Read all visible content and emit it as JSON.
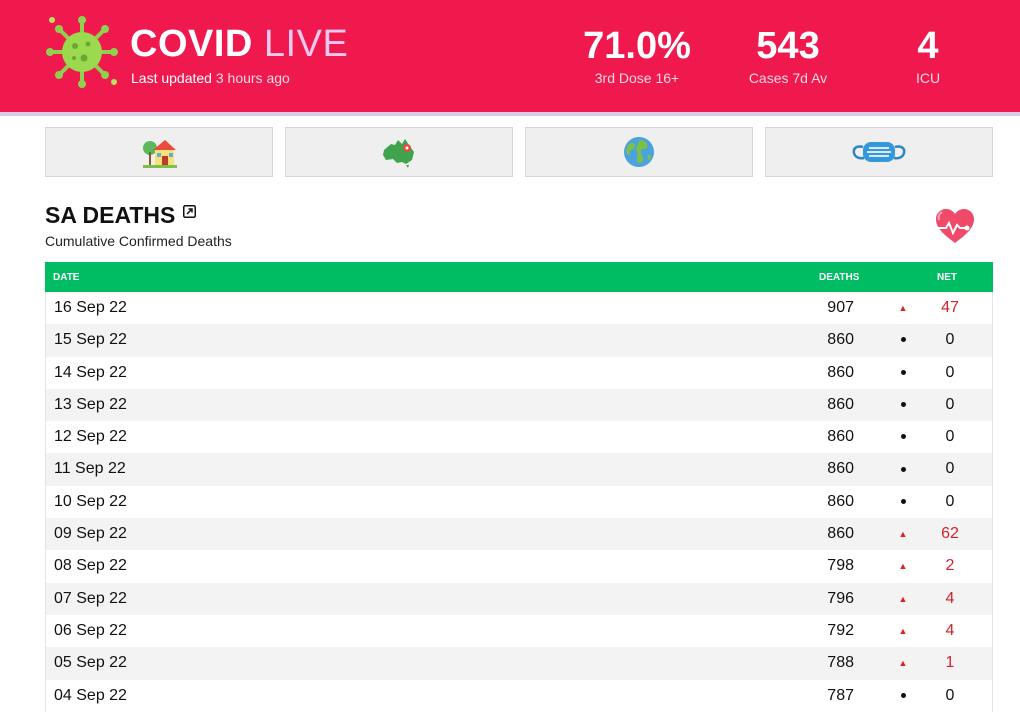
{
  "header": {
    "brand_main": "COVID",
    "brand_accent": "LIVE",
    "updated_label": "Last updated",
    "updated_ago": "3 hours ago",
    "stats": [
      {
        "value": "71.0%",
        "label": "3rd Dose 16+"
      },
      {
        "value": "543",
        "label": "Cases 7d Av"
      },
      {
        "value": "4",
        "label": "ICU"
      }
    ]
  },
  "nav": [
    {
      "icon": "house-icon"
    },
    {
      "icon": "australia-map-icon"
    },
    {
      "icon": "globe-icon"
    },
    {
      "icon": "face-mask-icon"
    }
  ],
  "page": {
    "title": "SA DEATHS",
    "subtitle": "Cumulative Confirmed Deaths"
  },
  "table": {
    "columns": {
      "date": "DATE",
      "deaths": "DEATHS",
      "net": "NET"
    },
    "rows": [
      {
        "date": "16 Sep 22",
        "deaths": "907",
        "net": "47",
        "trend": "up"
      },
      {
        "date": "15 Sep 22",
        "deaths": "860",
        "net": "0",
        "trend": "flat"
      },
      {
        "date": "14 Sep 22",
        "deaths": "860",
        "net": "0",
        "trend": "flat"
      },
      {
        "date": "13 Sep 22",
        "deaths": "860",
        "net": "0",
        "trend": "flat"
      },
      {
        "date": "12 Sep 22",
        "deaths": "860",
        "net": "0",
        "trend": "flat"
      },
      {
        "date": "11 Sep 22",
        "deaths": "860",
        "net": "0",
        "trend": "flat"
      },
      {
        "date": "10 Sep 22",
        "deaths": "860",
        "net": "0",
        "trend": "flat"
      },
      {
        "date": "09 Sep 22",
        "deaths": "860",
        "net": "62",
        "trend": "up"
      },
      {
        "date": "08 Sep 22",
        "deaths": "798",
        "net": "2",
        "trend": "up"
      },
      {
        "date": "07 Sep 22",
        "deaths": "796",
        "net": "4",
        "trend": "up"
      },
      {
        "date": "06 Sep 22",
        "deaths": "792",
        "net": "4",
        "trend": "up"
      },
      {
        "date": "05 Sep 22",
        "deaths": "788",
        "net": "1",
        "trend": "up"
      },
      {
        "date": "04 Sep 22",
        "deaths": "787",
        "net": "0",
        "trend": "flat"
      }
    ]
  },
  "colors": {
    "brand": "#f0194e",
    "table_header": "#00bc63",
    "net_positive": "#d2232a"
  }
}
